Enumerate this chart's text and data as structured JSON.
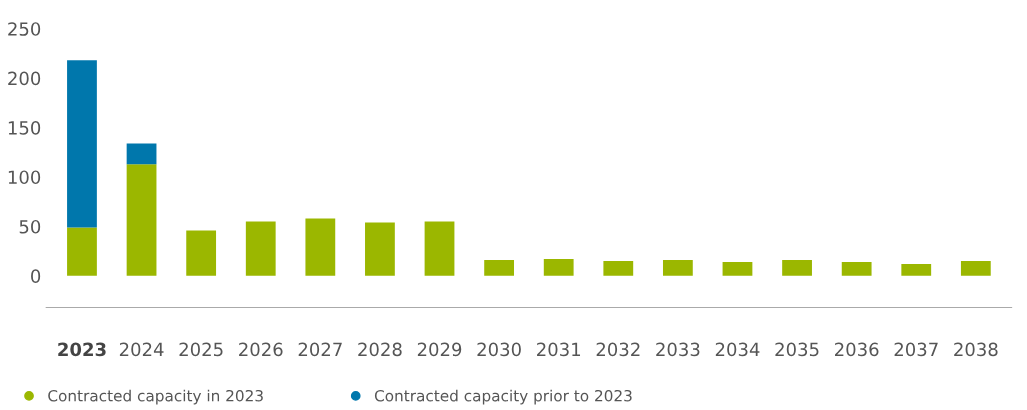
{
  "chart_data": {
    "type": "bar",
    "stacked": true,
    "categories": [
      "2023",
      "2024",
      "2025",
      "2026",
      "2027",
      "2028",
      "2029",
      "2030",
      "2031",
      "2032",
      "2033",
      "2034",
      "2035",
      "2036",
      "2037",
      "2038"
    ],
    "series": [
      {
        "name": "Contracted capacity in 2023",
        "color": "#9bb700",
        "values": [
          49,
          113,
          46,
          55,
          58,
          54,
          55,
          16,
          17,
          15,
          16,
          14,
          16,
          14,
          12,
          15
        ]
      },
      {
        "name": "Contracted capacity prior to 2023",
        "color": "#0077ac",
        "values": [
          169,
          21,
          null,
          null,
          null,
          null,
          null,
          null,
          null,
          null,
          null,
          null,
          null,
          null,
          null,
          null
        ]
      }
    ],
    "ylim": [
      -32,
      250
    ],
    "yticks": [
      0,
      50,
      100,
      150,
      200,
      250
    ],
    "grid": false,
    "legend": "bottom left"
  }
}
